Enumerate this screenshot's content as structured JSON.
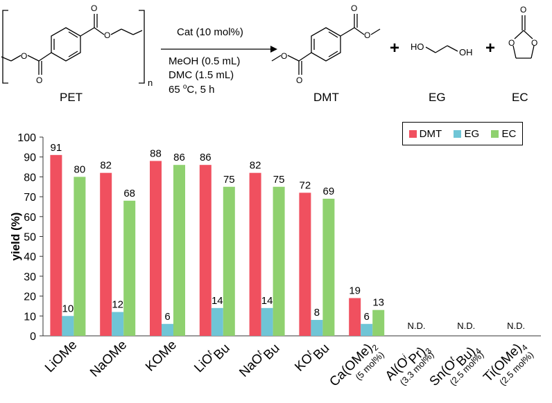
{
  "scheme": {
    "reactant": "PET",
    "subscript_n": "n",
    "conditions": {
      "catalyst": "Cat (10 mol%)",
      "methanol": "MeOH (0.5 mL)",
      "dmc": "DMC (1.5 mL)",
      "temperature_prefix": "65 ",
      "temperature_sup": "o",
      "temperature_suffix": "C, 5 h"
    },
    "products": [
      "DMT",
      "EG",
      "EC"
    ],
    "plus": "+"
  },
  "colors": {
    "DMT": "#f0505f",
    "EG": "#6fc5d6",
    "EC": "#8fd16f"
  },
  "chart_data": {
    "type": "bar",
    "ylabel": "yield (%)",
    "ylim": [
      0,
      100
    ],
    "yticks": [
      0,
      10,
      20,
      30,
      40,
      50,
      60,
      70,
      80,
      90,
      100
    ],
    "grid": false,
    "legend_position": "top-right",
    "categories": [
      {
        "label": "LiOMe"
      },
      {
        "label": "NaOMe"
      },
      {
        "label": "KOMe"
      },
      {
        "label": "LiO",
        "sup": "t",
        "after": "Bu"
      },
      {
        "label": "NaO",
        "sup": "t",
        "after": "Bu"
      },
      {
        "label": "KO",
        "sup": "t",
        "after": "Bu"
      },
      {
        "label": "Ca(OMe)",
        "sub": "2",
        "note": "(5 mol%)"
      },
      {
        "label": "Al(O",
        "sup": "i",
        "after": "Pr)",
        "sub": "3",
        "note": "(3.3 mol%)"
      },
      {
        "label": "Sn(O",
        "sup": "t",
        "after": "Bu)",
        "sub": "4",
        "note": "(2.5 mol%)"
      },
      {
        "label": "Ti(OMe)",
        "sub": "4",
        "note": "(2.5 mol%)"
      }
    ],
    "series": [
      {
        "name": "DMT",
        "values": [
          91,
          82,
          88,
          86,
          82,
          72,
          19,
          null,
          null,
          null
        ]
      },
      {
        "name": "EG",
        "values": [
          10,
          12,
          6,
          14,
          14,
          8,
          6,
          null,
          null,
          null
        ]
      },
      {
        "name": "EC",
        "values": [
          80,
          68,
          86,
          75,
          75,
          69,
          13,
          null,
          null,
          null
        ]
      }
    ],
    "not_detected_label": "N.D."
  }
}
